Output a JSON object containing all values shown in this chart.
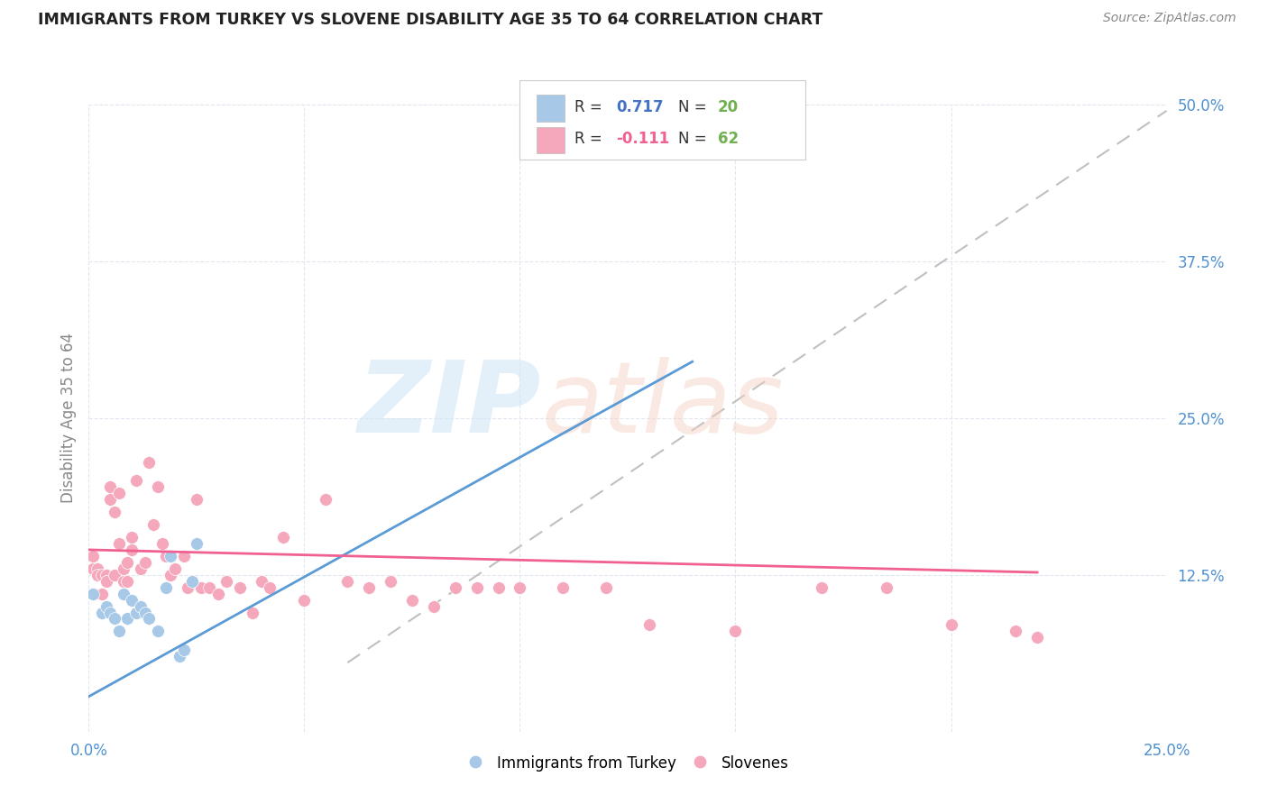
{
  "title": "IMMIGRANTS FROM TURKEY VS SLOVENE DISABILITY AGE 35 TO 64 CORRELATION CHART",
  "source": "Source: ZipAtlas.com",
  "ylabel": "Disability Age 35 to 64",
  "xlim": [
    0.0,
    0.25
  ],
  "ylim": [
    0.0,
    0.5
  ],
  "xticks": [
    0.0,
    0.05,
    0.1,
    0.15,
    0.2,
    0.25
  ],
  "yticks": [
    0.0,
    0.125,
    0.25,
    0.375,
    0.5
  ],
  "turkey_r": "0.717",
  "turkey_n": "20",
  "slovene_r": "-0.111",
  "slovene_n": "62",
  "turkey_color": "#a8c8e8",
  "slovene_color": "#f5a8bc",
  "turkey_line_color": "#5b9bd5",
  "slovene_line_color": "#f06090",
  "dashed_line_color": "#c0c0c0",
  "legend_r_color": "#4472c4",
  "legend_n_color": "#70b050",
  "turkey_x": [
    0.001,
    0.003,
    0.004,
    0.005,
    0.006,
    0.007,
    0.008,
    0.009,
    0.01,
    0.011,
    0.012,
    0.013,
    0.014,
    0.016,
    0.018,
    0.019,
    0.021,
    0.022,
    0.024,
    0.025
  ],
  "turkey_y": [
    0.11,
    0.095,
    0.1,
    0.095,
    0.09,
    0.08,
    0.11,
    0.09,
    0.105,
    0.095,
    0.1,
    0.095,
    0.09,
    0.08,
    0.115,
    0.14,
    0.06,
    0.065,
    0.12,
    0.15
  ],
  "slovene_x": [
    0.001,
    0.001,
    0.002,
    0.002,
    0.003,
    0.003,
    0.004,
    0.004,
    0.005,
    0.005,
    0.006,
    0.006,
    0.007,
    0.007,
    0.008,
    0.008,
    0.009,
    0.009,
    0.01,
    0.01,
    0.011,
    0.012,
    0.013,
    0.014,
    0.015,
    0.016,
    0.017,
    0.018,
    0.019,
    0.02,
    0.022,
    0.023,
    0.025,
    0.026,
    0.028,
    0.03,
    0.032,
    0.035,
    0.038,
    0.04,
    0.042,
    0.045,
    0.05,
    0.055,
    0.06,
    0.065,
    0.07,
    0.075,
    0.08,
    0.085,
    0.09,
    0.095,
    0.1,
    0.11,
    0.12,
    0.13,
    0.15,
    0.17,
    0.185,
    0.2,
    0.215,
    0.22
  ],
  "slovene_y": [
    0.14,
    0.13,
    0.13,
    0.125,
    0.125,
    0.11,
    0.125,
    0.12,
    0.185,
    0.195,
    0.125,
    0.175,
    0.19,
    0.15,
    0.13,
    0.12,
    0.12,
    0.135,
    0.145,
    0.155,
    0.2,
    0.13,
    0.135,
    0.215,
    0.165,
    0.195,
    0.15,
    0.14,
    0.125,
    0.13,
    0.14,
    0.115,
    0.185,
    0.115,
    0.115,
    0.11,
    0.12,
    0.115,
    0.095,
    0.12,
    0.115,
    0.155,
    0.105,
    0.185,
    0.12,
    0.115,
    0.12,
    0.105,
    0.1,
    0.115,
    0.115,
    0.115,
    0.115,
    0.115,
    0.115,
    0.085,
    0.08,
    0.115,
    0.115,
    0.085,
    0.08,
    0.075
  ],
  "turkey_line_x": [
    0.0,
    0.14
  ],
  "turkey_line_y": [
    0.028,
    0.295
  ],
  "slovene_line_x": [
    0.0,
    0.22
  ],
  "slovene_line_y": [
    0.145,
    0.127
  ],
  "dash_line_x": [
    0.06,
    0.25
  ],
  "dash_line_y": [
    0.055,
    0.495
  ]
}
